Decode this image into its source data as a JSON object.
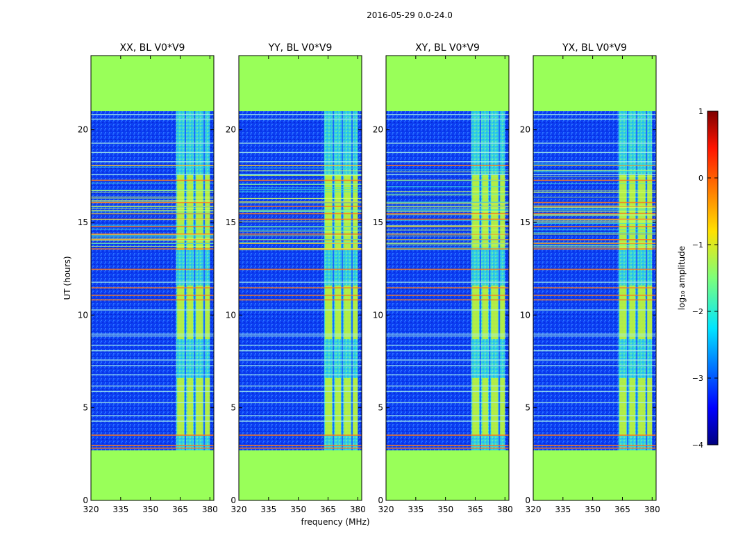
{
  "figure": {
    "suptitle": "2016-05-29 0.0-24.0"
  },
  "chart_data": {
    "type": "heatmap",
    "panels": [
      {
        "title": "XX, BL V0*V9"
      },
      {
        "title": "YY, BL V0*V9"
      },
      {
        "title": "XY, BL V0*V9"
      },
      {
        "title": "YX, BL V0*V9"
      }
    ],
    "xlabel": "frequency (MHz)",
    "ylabel": "UT (hours)",
    "xlim": [
      320,
      382
    ],
    "ylim": [
      0,
      24
    ],
    "xticks": [
      320,
      335,
      350,
      365,
      380
    ],
    "yticks": [
      0,
      5,
      10,
      15,
      20
    ],
    "no_data_hours": [
      [
        0,
        2.7
      ],
      [
        21,
        24
      ]
    ],
    "rfi_band_MHz": [
      363,
      380
    ],
    "colorbar": {
      "label": "log₁₀ amplitude",
      "range": [
        -4,
        1
      ],
      "ticks": [
        1,
        0,
        -1,
        -2,
        -3,
        -4
      ],
      "tick_labels": [
        "1",
        "0",
        "−1",
        "−2",
        "−3",
        "−4"
      ],
      "colormap": "jet"
    }
  },
  "colors": {
    "masked": "#99ff59",
    "background": "#0a3cf0",
    "rfi": "#3ee8d4",
    "strong": "#c6f22e",
    "hot": "#ff7a1a"
  }
}
